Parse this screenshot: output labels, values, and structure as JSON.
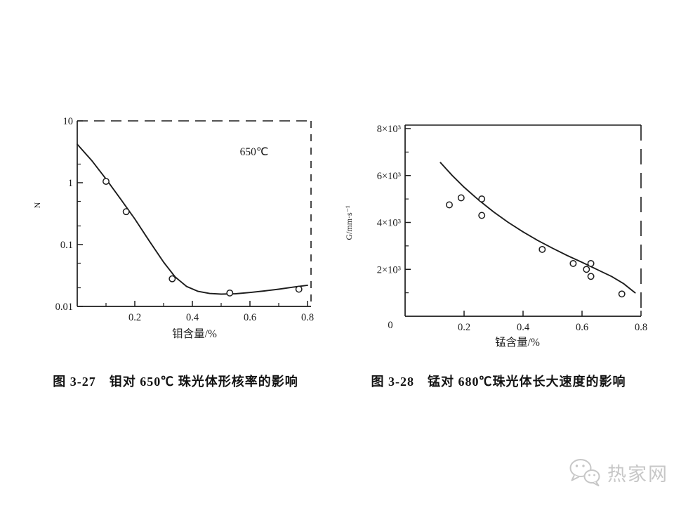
{
  "page": {
    "ink": "#1c1c1c",
    "background": "#ffffff"
  },
  "figures": [
    {
      "caption": "图 3-27　钼对 650℃ 珠光体形核率的影响",
      "annotation": "650℃",
      "xlabel": "钼含量/%",
      "ylabel": "N"
    },
    {
      "caption": "图 3-28　锰对 680℃珠光体长大速度的影响",
      "annotation": "",
      "xlabel": "锰含量/%",
      "ylabel": "G/mm·s⁻¹"
    }
  ],
  "watermark": {
    "label": "热家网",
    "color": "#c7c7c7",
    "icon": "wechat-icon"
  },
  "chart_data": [
    {
      "type": "scatter",
      "title": "图 3-27 钼对650℃珠光体形核率的影响",
      "xlabel": "钼含量/%",
      "ylabel": "N",
      "annotation": "650℃",
      "grid": false,
      "legend": null,
      "x_axis": {
        "scale": "linear",
        "min": 0,
        "max": 0.82,
        "ticks": [
          0.2,
          0.4,
          0.6,
          0.8
        ],
        "tick_labels": [
          "0.2",
          "0.4",
          "0.6",
          "0.8"
        ],
        "minor_ticks": [
          0.1,
          0.3,
          0.5,
          0.7
        ]
      },
      "y_axis": {
        "scale": "log",
        "min": 0.01,
        "max": 10,
        "ticks": [
          10,
          1,
          0.1,
          0.01
        ],
        "tick_labels": [
          "10",
          "1",
          "0.1",
          "0.01"
        ],
        "minor_ticks": [
          2,
          0.5,
          0.2,
          0.05,
          0.02
        ]
      },
      "points": [
        [
          0.1,
          1.05
        ],
        [
          0.17,
          0.34
        ],
        [
          0.33,
          0.028
        ],
        [
          0.53,
          0.0165
        ],
        [
          0.77,
          0.019
        ]
      ],
      "curve": [
        [
          0.0,
          4.2
        ],
        [
          0.05,
          2.3
        ],
        [
          0.1,
          1.15
        ],
        [
          0.15,
          0.55
        ],
        [
          0.2,
          0.26
        ],
        [
          0.25,
          0.115
        ],
        [
          0.3,
          0.052
        ],
        [
          0.34,
          0.03
        ],
        [
          0.38,
          0.021
        ],
        [
          0.42,
          0.0175
        ],
        [
          0.46,
          0.0162
        ],
        [
          0.5,
          0.0158
        ],
        [
          0.55,
          0.016
        ],
        [
          0.6,
          0.0168
        ],
        [
          0.65,
          0.0178
        ],
        [
          0.7,
          0.019
        ],
        [
          0.75,
          0.0205
        ],
        [
          0.8,
          0.022
        ]
      ]
    },
    {
      "type": "scatter",
      "title": "图 3-28 锰对680℃珠光体长大速度的影响",
      "xlabel": "锰含量/%",
      "ylabel": "G/mm·s⁻¹",
      "annotation": "",
      "grid": false,
      "legend": null,
      "x_axis": {
        "scale": "linear",
        "min": 0,
        "max": 0.8,
        "ticks": [
          0.2,
          0.4,
          0.6,
          0.8
        ],
        "tick_labels": [
          "0.2",
          "0.4",
          "0.6",
          "0.8"
        ],
        "minor_ticks": [],
        "origin_label": "0"
      },
      "y_axis": {
        "scale": "linear",
        "min": 0,
        "max": 8400,
        "ticks": [
          2000,
          4000,
          6000,
          8000
        ],
        "tick_labels": [
          "2×10³",
          "4×10³",
          "6×10³",
          "8×10³"
        ],
        "minor_ticks": [
          1000,
          3000,
          5000,
          7000
        ]
      },
      "points": [
        [
          0.15,
          4750
        ],
        [
          0.19,
          5050
        ],
        [
          0.26,
          5000
        ],
        [
          0.26,
          4300
        ],
        [
          0.465,
          2850
        ],
        [
          0.57,
          2250
        ],
        [
          0.63,
          2250
        ],
        [
          0.615,
          2000
        ],
        [
          0.63,
          1700
        ],
        [
          0.735,
          950
        ]
      ],
      "curve": [
        [
          0.12,
          6550
        ],
        [
          0.16,
          6000
        ],
        [
          0.2,
          5500
        ],
        [
          0.25,
          4950
        ],
        [
          0.3,
          4450
        ],
        [
          0.35,
          4000
        ],
        [
          0.4,
          3600
        ],
        [
          0.45,
          3230
        ],
        [
          0.5,
          2900
        ],
        [
          0.55,
          2590
        ],
        [
          0.6,
          2300
        ],
        [
          0.65,
          2000
        ],
        [
          0.7,
          1700
        ],
        [
          0.74,
          1400
        ],
        [
          0.78,
          1000
        ]
      ]
    }
  ]
}
